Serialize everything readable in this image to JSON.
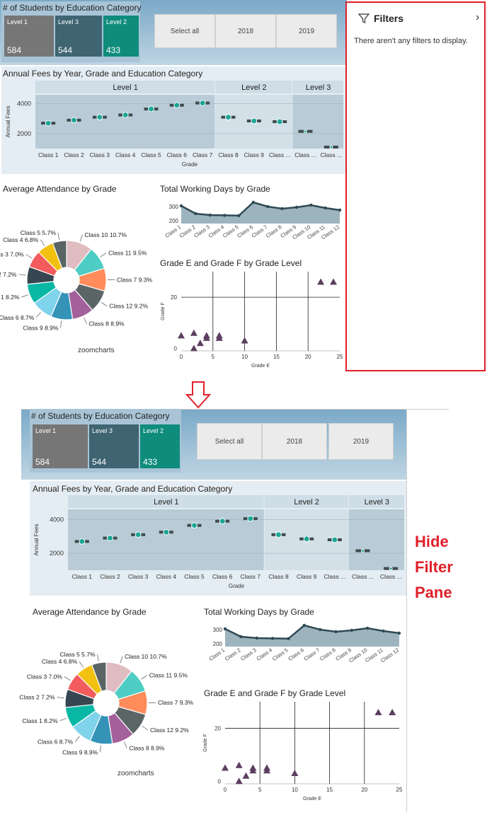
{
  "kpi": {
    "title": "# of Students by Education Category",
    "tiles": [
      {
        "label": "Level 1",
        "value": "584",
        "color": "#767676"
      },
      {
        "label": "Level 3",
        "value": "544",
        "color": "#3f6472"
      },
      {
        "label": "Level 2",
        "value": "433",
        "color": "#0f8c7c"
      }
    ]
  },
  "slicer": {
    "options": [
      "Select all",
      "2018",
      "2019"
    ]
  },
  "fees": {
    "title": "Annual Fees by Year, Grade and Education Category",
    "groups": [
      "Level 1",
      "Level 2",
      "Level 3"
    ],
    "ylabel": "Annual Fees",
    "xlabel": "Grade",
    "yticks": [
      "4000",
      "2000"
    ],
    "classes": [
      "Class 1",
      "Class 2",
      "Class 3",
      "Class 4",
      "Class 5",
      "Class 6",
      "Class 7",
      "Class 8",
      "Class 9",
      "Class ...",
      "Class ...",
      "Class ..."
    ]
  },
  "attendance": {
    "title": "Average Attendance by Grade",
    "labels": [
      "Class 5 5.7%",
      "Class 4 6.8%",
      "Class 3 7.0%",
      "Class 2 7.2%",
      "Class 1 8.2%",
      "Class 6 8.7%",
      "Class 9 8.9%",
      "Class 8 8.9%",
      "Class 12 9.2%",
      "Class 7 9.3%",
      "Class 11 9.5%",
      "Class 10 10.7%"
    ],
    "brand": "zoomcharts"
  },
  "working_days": {
    "title": "Total Working Days by Grade",
    "yticks": [
      "300",
      "200"
    ],
    "classes": [
      "Class 1",
      "Class 2",
      "Class 3",
      "Class 4",
      "Class 5",
      "Class 6",
      "Class 7",
      "Class 8",
      "Class 9",
      "Class 10",
      "Class 11",
      "Class 12"
    ]
  },
  "grades": {
    "title": "Grade E and Grade F by Grade Level",
    "ylabel": "Grade F",
    "xlabel": "Grade E",
    "xticks": [
      "0",
      "5",
      "10",
      "15",
      "20",
      "25"
    ],
    "yticks": [
      "20",
      "0"
    ]
  },
  "filters": {
    "title": "Filters",
    "message": "There aren't any filters to display."
  },
  "caption": [
    "Hide",
    "Filter",
    "Pane"
  ],
  "chart_data": [
    {
      "type": "scatter",
      "title": "Annual Fees by Year, Grade and Education Category",
      "xlabel": "Grade",
      "ylabel": "Annual Fees",
      "categories": [
        "Class 1",
        "Class 2",
        "Class 3",
        "Class 4",
        "Class 5",
        "Class 6",
        "Class 7",
        "Class 8",
        "Class 9",
        "Class 10",
        "Class 11",
        "Class 12"
      ],
      "groups": [
        {
          "name": "Level 1",
          "classes": 7
        },
        {
          "name": "Level 2",
          "classes": 3
        },
        {
          "name": "Level 3",
          "classes": 2
        }
      ],
      "values": [
        2700,
        2900,
        3100,
        3250,
        3650,
        3900,
        4050,
        3100,
        2850,
        2800,
        2150,
        1100
      ],
      "ylim": [
        1000,
        4600
      ]
    },
    {
      "type": "pie",
      "title": "Average Attendance by Grade",
      "categories": [
        "Class 10",
        "Class 11",
        "Class 7",
        "Class 12",
        "Class 8",
        "Class 9",
        "Class 6",
        "Class 1",
        "Class 2",
        "Class 3",
        "Class 4",
        "Class 5"
      ],
      "values": [
        10.7,
        9.5,
        9.3,
        9.2,
        8.9,
        8.9,
        8.7,
        8.2,
        7.2,
        7.0,
        6.8,
        5.7
      ],
      "colors": [
        "#dfbcc0",
        "#4ecdc4",
        "#ff8c5a",
        "#5b6566",
        "#a4609a",
        "#3593b8",
        "#7fd3ea",
        "#08b8a5",
        "#374650",
        "#f25c5c",
        "#f2c00f",
        "#5a6464"
      ]
    },
    {
      "type": "area",
      "title": "Total Working Days by Grade",
      "categories": [
        "Class 1",
        "Class 2",
        "Class 3",
        "Class 4",
        "Class 5",
        "Class 6",
        "Class 7",
        "Class 8",
        "Class 9",
        "Class 10",
        "Class 11",
        "Class 12"
      ],
      "values": [
        305,
        250,
        240,
        238,
        236,
        330,
        300,
        285,
        295,
        310,
        290,
        275
      ],
      "ylim": [
        180,
        350
      ]
    },
    {
      "type": "scatter",
      "title": "Grade E and Grade F by Grade Level",
      "xlabel": "Grade E",
      "ylabel": "Grade F",
      "x": [
        0,
        2,
        2,
        3,
        4,
        4,
        6,
        6,
        10,
        22,
        24
      ],
      "y": [
        5,
        6,
        0,
        2,
        5,
        4,
        5,
        4,
        3,
        26,
        26
      ],
      "xlim": [
        0,
        25
      ],
      "ylim": [
        -1,
        30
      ]
    }
  ]
}
